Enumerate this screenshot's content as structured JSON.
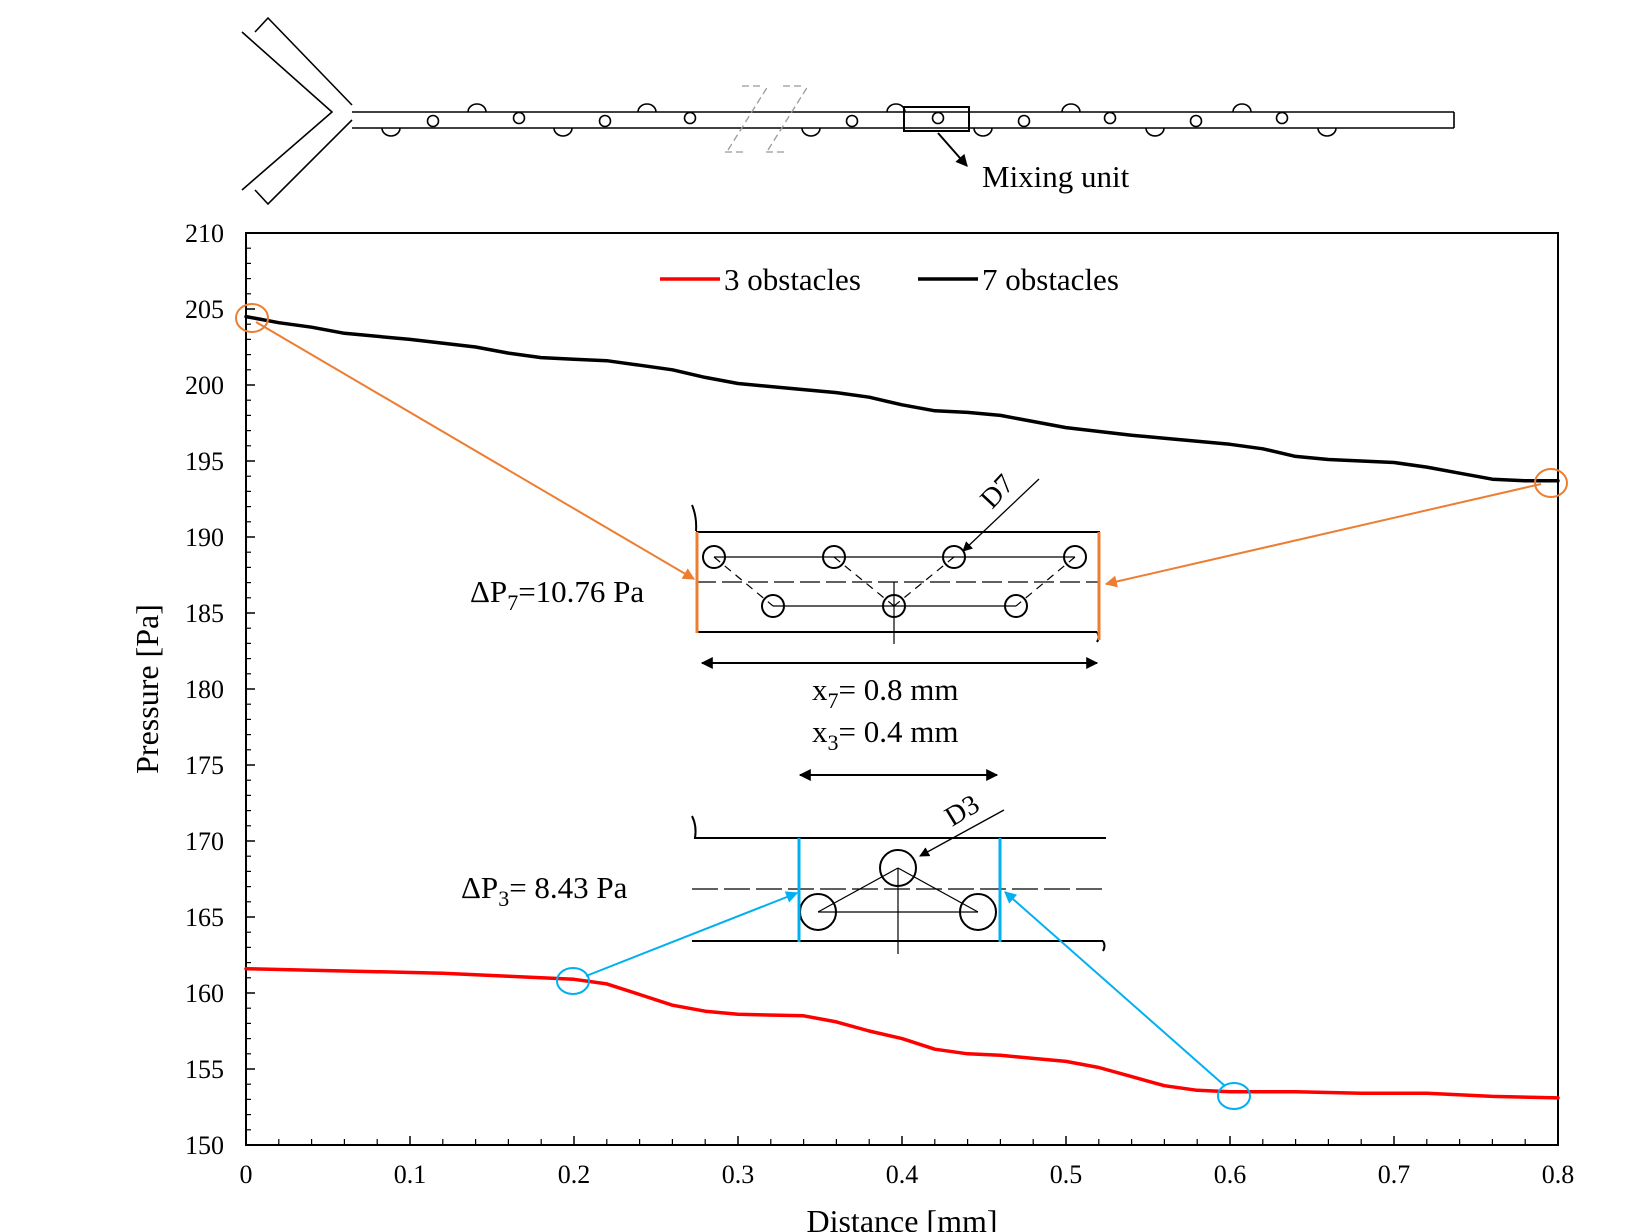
{
  "schematic": {
    "label": "Mixing unit"
  },
  "chart_data": {
    "type": "line",
    "title": "",
    "xlabel": "Distance [mm]",
    "ylabel": "Pressure [Pa]",
    "xlim": [
      0,
      0.8
    ],
    "ylim": [
      150,
      210
    ],
    "xticks": [
      0,
      0.1,
      0.2,
      0.3,
      0.4,
      0.5,
      0.6,
      0.7,
      0.8
    ],
    "xtick_labels": [
      "0",
      "0.1",
      "0.2",
      "0.3",
      "0.4",
      "0.5",
      "0.6",
      "0.7",
      "0.8"
    ],
    "yticks": [
      150,
      155,
      160,
      165,
      170,
      175,
      180,
      185,
      190,
      195,
      200,
      205,
      210
    ],
    "ytick_labels": [
      "150",
      "155",
      "160",
      "165",
      "170",
      "175",
      "180",
      "185",
      "190",
      "195",
      "200",
      "205",
      "210"
    ],
    "grid": false,
    "legend_position": "top-center",
    "series": [
      {
        "name": "3 obstacles",
        "color": "#ff0000",
        "x": [
          0,
          0.04,
          0.08,
          0.12,
          0.16,
          0.2,
          0.22,
          0.24,
          0.26,
          0.28,
          0.3,
          0.34,
          0.36,
          0.38,
          0.4,
          0.42,
          0.44,
          0.46,
          0.48,
          0.5,
          0.52,
          0.54,
          0.56,
          0.58,
          0.6,
          0.64,
          0.68,
          0.72,
          0.76,
          0.8
        ],
        "y": [
          161.6,
          161.5,
          161.4,
          161.3,
          161.1,
          160.9,
          160.6,
          159.9,
          159.2,
          158.8,
          158.6,
          158.5,
          158.1,
          157.5,
          157.0,
          156.3,
          156.0,
          155.9,
          155.7,
          155.5,
          155.1,
          154.5,
          153.9,
          153.6,
          153.5,
          153.5,
          153.4,
          153.4,
          153.2,
          153.1
        ]
      },
      {
        "name": "7 obstacles",
        "color": "#000000",
        "x": [
          0,
          0.02,
          0.04,
          0.06,
          0.1,
          0.14,
          0.16,
          0.18,
          0.2,
          0.22,
          0.24,
          0.26,
          0.28,
          0.3,
          0.34,
          0.36,
          0.38,
          0.4,
          0.42,
          0.44,
          0.46,
          0.48,
          0.5,
          0.54,
          0.56,
          0.58,
          0.6,
          0.62,
          0.64,
          0.66,
          0.68,
          0.7,
          0.72,
          0.74,
          0.76,
          0.78,
          0.8
        ],
        "y": [
          204.5,
          204.1,
          203.8,
          203.4,
          203.0,
          202.5,
          202.1,
          201.8,
          201.7,
          201.6,
          201.3,
          201.0,
          200.5,
          200.1,
          199.7,
          199.5,
          199.2,
          198.7,
          198.3,
          198.2,
          198.0,
          197.6,
          197.2,
          196.7,
          196.5,
          196.3,
          196.1,
          195.8,
          195.3,
          195.1,
          195.0,
          194.9,
          194.6,
          194.2,
          193.8,
          193.7,
          193.7
        ]
      }
    ],
    "annotations": {
      "dp7": {
        "label": "ΔP",
        "subscript": "7",
        "value": "=10.76 Pa",
        "from_x": [
          0,
          0.8
        ],
        "color": "#ed7d31"
      },
      "dp3": {
        "label": "ΔP",
        "subscript": "3",
        "value": "= 8.43 Pa",
        "from_x": [
          0.2,
          0.6
        ],
        "color": "#00b0f0"
      },
      "x7": {
        "label": "x",
        "subscript": "7",
        "value": "= 0.8 mm"
      },
      "x3": {
        "label": "x",
        "subscript": "3",
        "value": "= 0.4 mm"
      },
      "d7": "D7",
      "d3": "D3"
    }
  }
}
